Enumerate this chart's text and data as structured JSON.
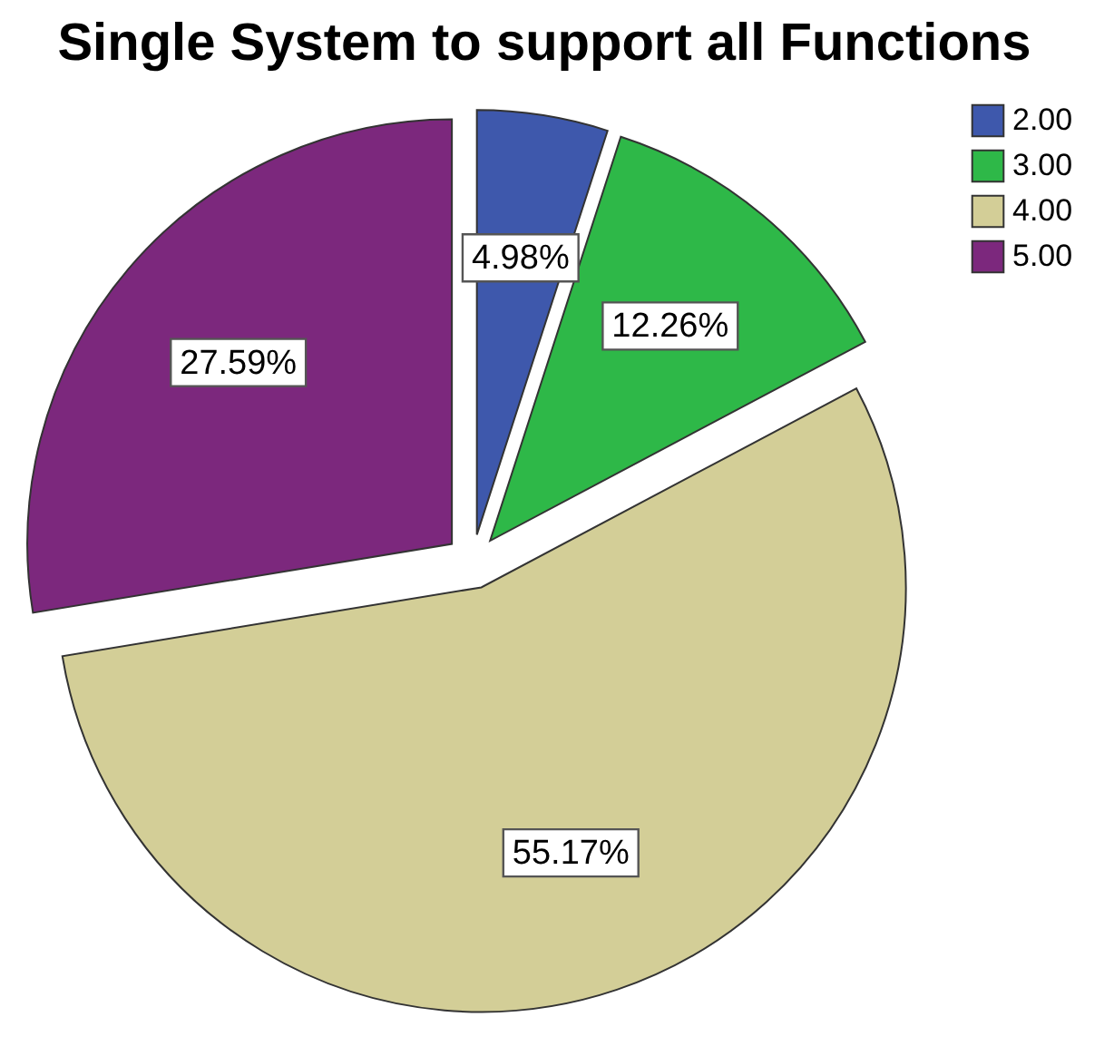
{
  "chart_data": {
    "type": "pie",
    "title": "Single System to support all Functions",
    "categories": [
      "2.00",
      "3.00",
      "4.00",
      "5.00"
    ],
    "values": [
      4.98,
      12.26,
      55.17,
      27.59
    ],
    "colors": [
      "#3e58ac",
      "#2eb848",
      "#d3ce97",
      "#7c287d"
    ],
    "value_labels": [
      "4.98%",
      "12.26%",
      "55.17%",
      "27.59%"
    ],
    "legend": "top right"
  }
}
